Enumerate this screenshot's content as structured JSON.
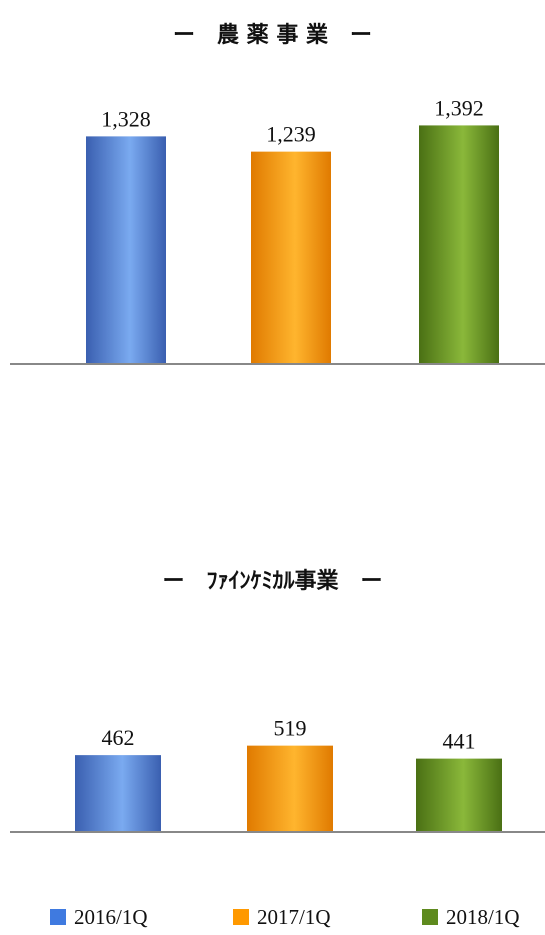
{
  "colors": {
    "2016/1Q": "#3f7ae0",
    "2017/1Q": "#ff9900",
    "2018/1Q": "#5e8a1e",
    "baseline": "#888888"
  },
  "legend": [
    "2016/1Q",
    "2017/1Q",
    "2018/1Q"
  ],
  "chart_data": [
    {
      "type": "bar",
      "title": "ー　農 薬 事 業　ー",
      "categories": [
        "2016/1Q",
        "2017/1Q",
        "2018/1Q"
      ],
      "values": [
        1328,
        1239,
        1392
      ],
      "labels": [
        "1,328",
        "1,239",
        "1,392"
      ],
      "legend": "bottom"
    },
    {
      "type": "bar",
      "title": "ー　ﾌｧｲﾝｹﾐｶﾙ事業　ー",
      "categories": [
        "2016/1Q",
        "2017/1Q",
        "2018/1Q"
      ],
      "values": [
        462,
        519,
        441
      ],
      "labels": [
        "462",
        "519",
        "441"
      ],
      "legend": "bottom"
    }
  ]
}
